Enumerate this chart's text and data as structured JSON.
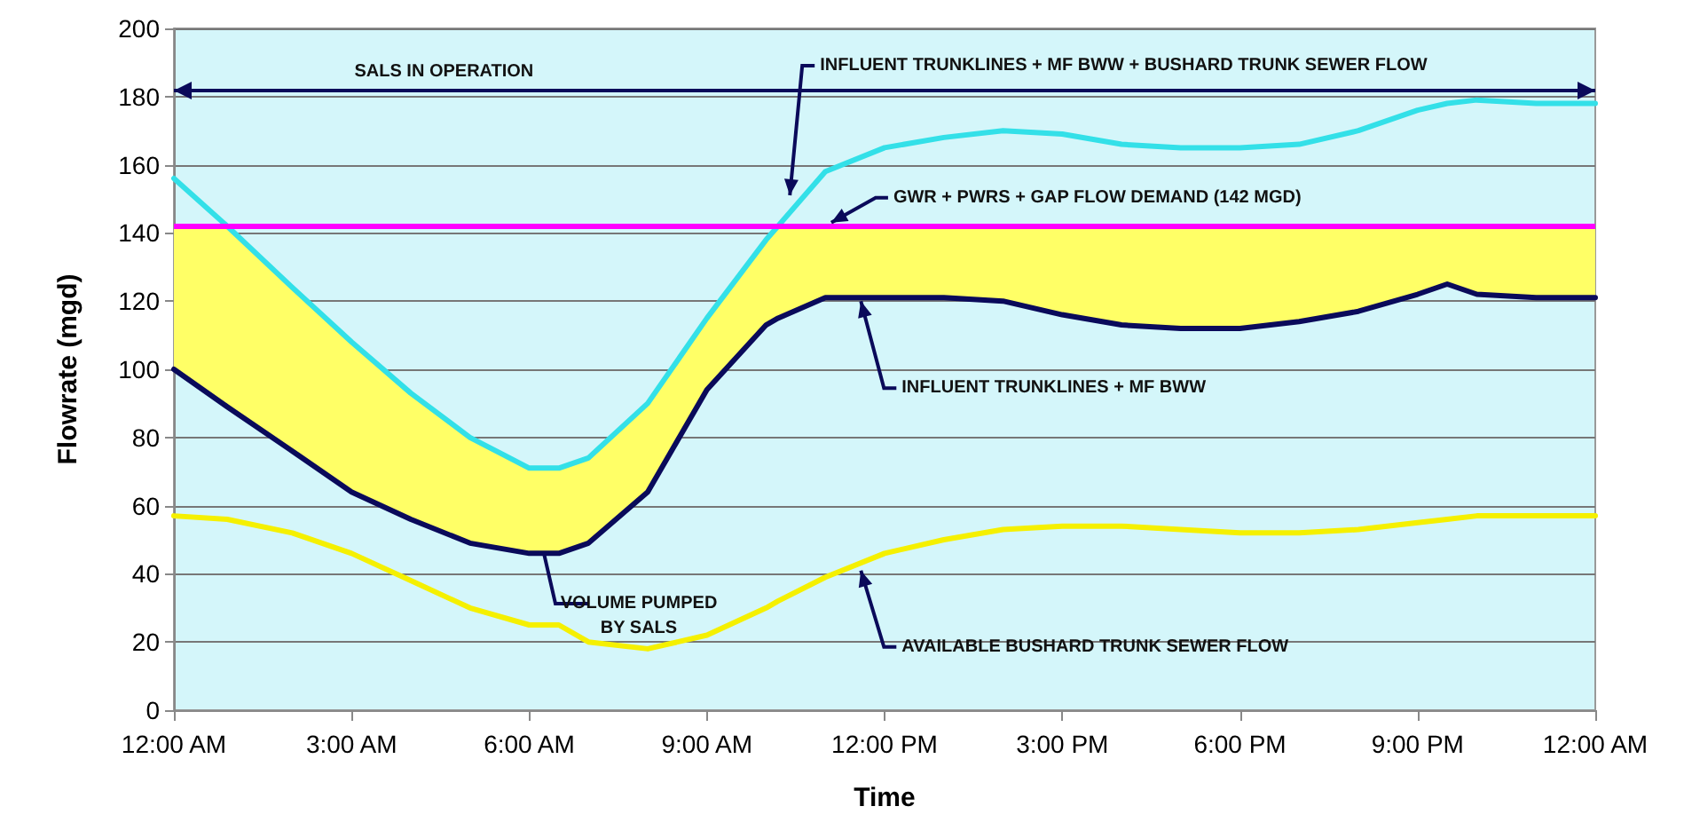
{
  "chart_data": {
    "type": "line",
    "xlabel": "Time",
    "ylabel": "Flowrate (mgd)",
    "x": [
      0,
      0.9,
      2,
      3,
      4,
      5,
      6,
      6.5,
      7,
      8,
      9,
      10,
      10.2,
      11,
      12,
      13,
      14,
      15,
      16,
      17,
      18,
      19,
      20,
      21,
      21.5,
      22,
      23,
      24
    ],
    "series": [
      {
        "color": "#33e0e8",
        "values": [
          156,
          142,
          124,
          108,
          93,
          80,
          71,
          71,
          74,
          90,
          115,
          138,
          142,
          158,
          165,
          168,
          170,
          169,
          166,
          165,
          165,
          166,
          170,
          176,
          178,
          179,
          178,
          178
        ]
      },
      {
        "color": "#0a0a5a",
        "values": [
          100,
          89,
          76,
          64,
          56,
          49,
          46,
          46,
          49,
          64,
          94,
          113,
          115,
          121,
          121,
          121,
          120,
          116,
          113,
          112,
          112,
          114,
          117,
          122,
          125,
          122,
          121,
          121
        ],
        "lower": [
          100,
          89,
          76,
          64,
          56,
          49,
          46,
          46,
          49,
          64,
          94,
          113,
          115,
          121,
          121,
          121,
          120,
          116,
          113,
          112,
          112,
          114,
          117,
          122,
          125,
          122,
          121,
          121
        ],
        "upper": [
          142,
          142,
          124,
          108,
          93,
          80,
          71,
          71,
          74,
          90,
          115,
          138,
          142,
          142,
          142,
          142,
          142,
          142,
          142,
          142,
          142,
          142,
          142,
          142,
          142,
          142,
          142,
          142
        ]
      },
      {
        "color": "#f5f000",
        "values": [
          57,
          56,
          52,
          46,
          38,
          30,
          25,
          25,
          20,
          18,
          22,
          30,
          32,
          39,
          46,
          50,
          53,
          54,
          54,
          53,
          52,
          52,
          53,
          55,
          56,
          57,
          57,
          57
        ]
      }
    ],
    "xlim": [
      0,
      24
    ],
    "xticks": [
      {
        "value": 0,
        "label": "12:00 AM"
      },
      {
        "value": 3,
        "label": "3:00 AM"
      },
      {
        "value": 6,
        "label": "6:00 AM"
      },
      {
        "value": 9,
        "label": "9:00 AM"
      },
      {
        "value": 12,
        "label": "12:00 PM"
      },
      {
        "value": 15,
        "label": "3:00 PM"
      },
      {
        "value": 18,
        "label": "6:00 PM"
      },
      {
        "value": 21,
        "label": "9:00 PM"
      },
      {
        "value": 24,
        "label": "12:00 AM"
      }
    ],
    "ylim": [
      0,
      200
    ],
    "yticks": [
      0,
      20,
      40,
      60,
      80,
      100,
      120,
      140,
      160,
      180,
      200
    ],
    "ref_lines": [
      {
        "axis": "y",
        "value": 142,
        "color": "#ff00ff"
      },
      {
        "axis": "y",
        "value": 182,
        "label": "SALS IN OPERATION",
        "color": "#0a0a5a"
      }
    ],
    "annotations": [
      {
        "text": "INFLUENT TRUNKLINES + MF BWW + BUSHARD TRUNK SEWER FLOW",
        "x": 10.4,
        "y": 150
      },
      {
        "text": "GWR + PWRS + GAP FLOW DEMAND (142 MGD)",
        "x": 11.1,
        "y": 142
      },
      {
        "text": "INFLUENT TRUNKLINES + MF BWW",
        "x": 11.6,
        "y": 121
      },
      "VOLUME PUMPED\nBY SALS",
      {
        "text": "AVAILABLE BUSHARD TRUNK SEWER FLOW",
        "x": 11.6,
        "y": 42
      }
    ],
    "grid": "y",
    "marker": "none",
    "line_style": "solid"
  }
}
